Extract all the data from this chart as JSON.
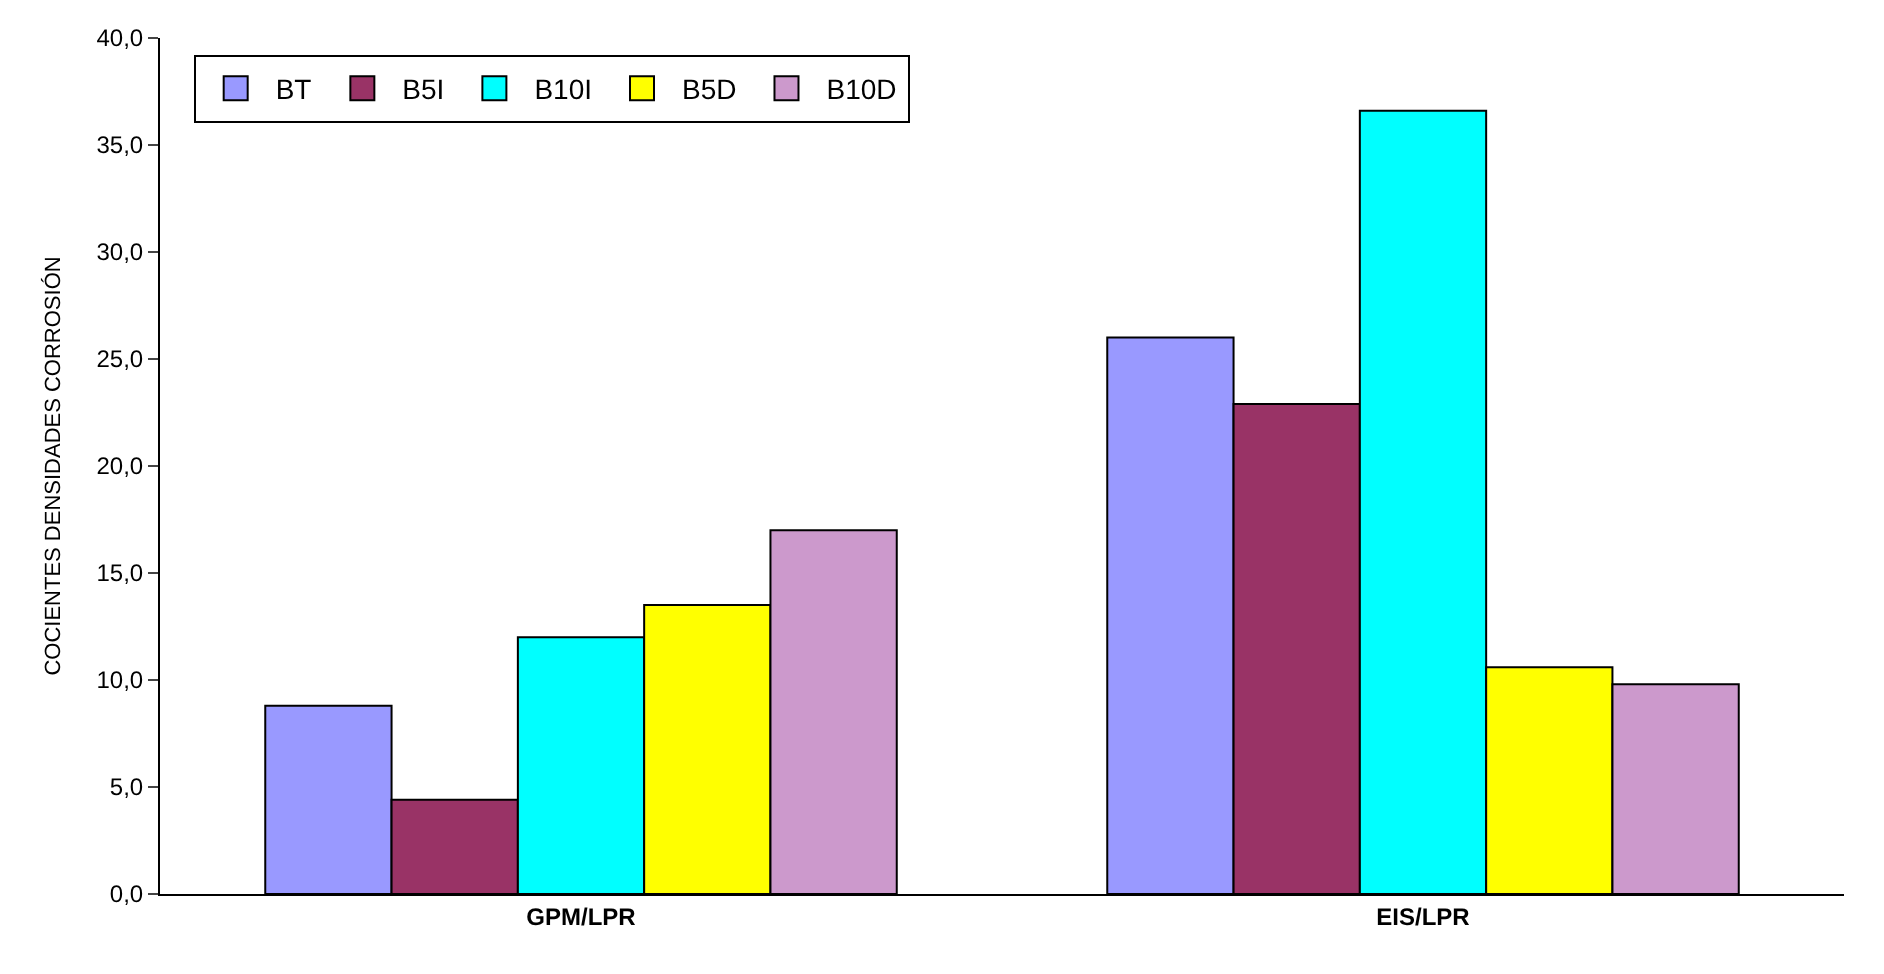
{
  "chart_data": {
    "type": "bar",
    "ylabel": "COCIENTES DENSIDADES CORROSIÓN",
    "categories": [
      "GPM/LPR",
      "EIS/LPR"
    ],
    "series": [
      {
        "name": "BT",
        "color": "#9999ff",
        "values": [
          8.8,
          26.0
        ]
      },
      {
        "name": "B5I",
        "color": "#993366",
        "values": [
          4.4,
          22.9
        ]
      },
      {
        "name": "B10I",
        "color": "#00ffff",
        "values": [
          12.0,
          36.6
        ]
      },
      {
        "name": "B5D",
        "color": "#ffff00",
        "values": [
          13.5,
          10.6
        ]
      },
      {
        "name": "B10D",
        "color": "#cc99cc",
        "values": [
          17.0,
          9.8
        ]
      }
    ],
    "ylim": [
      0,
      40
    ],
    "yticks": [
      {
        "value": 0,
        "label": "0,0"
      },
      {
        "value": 5,
        "label": "5,0"
      },
      {
        "value": 10,
        "label": "10,0"
      },
      {
        "value": 15,
        "label": "15,0"
      },
      {
        "value": 20,
        "label": "20,0"
      },
      {
        "value": 25,
        "label": "25,0"
      },
      {
        "value": 30,
        "label": "30,0"
      },
      {
        "value": 35,
        "label": "35,0"
      },
      {
        "value": 40,
        "label": "40,0"
      }
    ],
    "grid": false,
    "legend": "top left"
  }
}
